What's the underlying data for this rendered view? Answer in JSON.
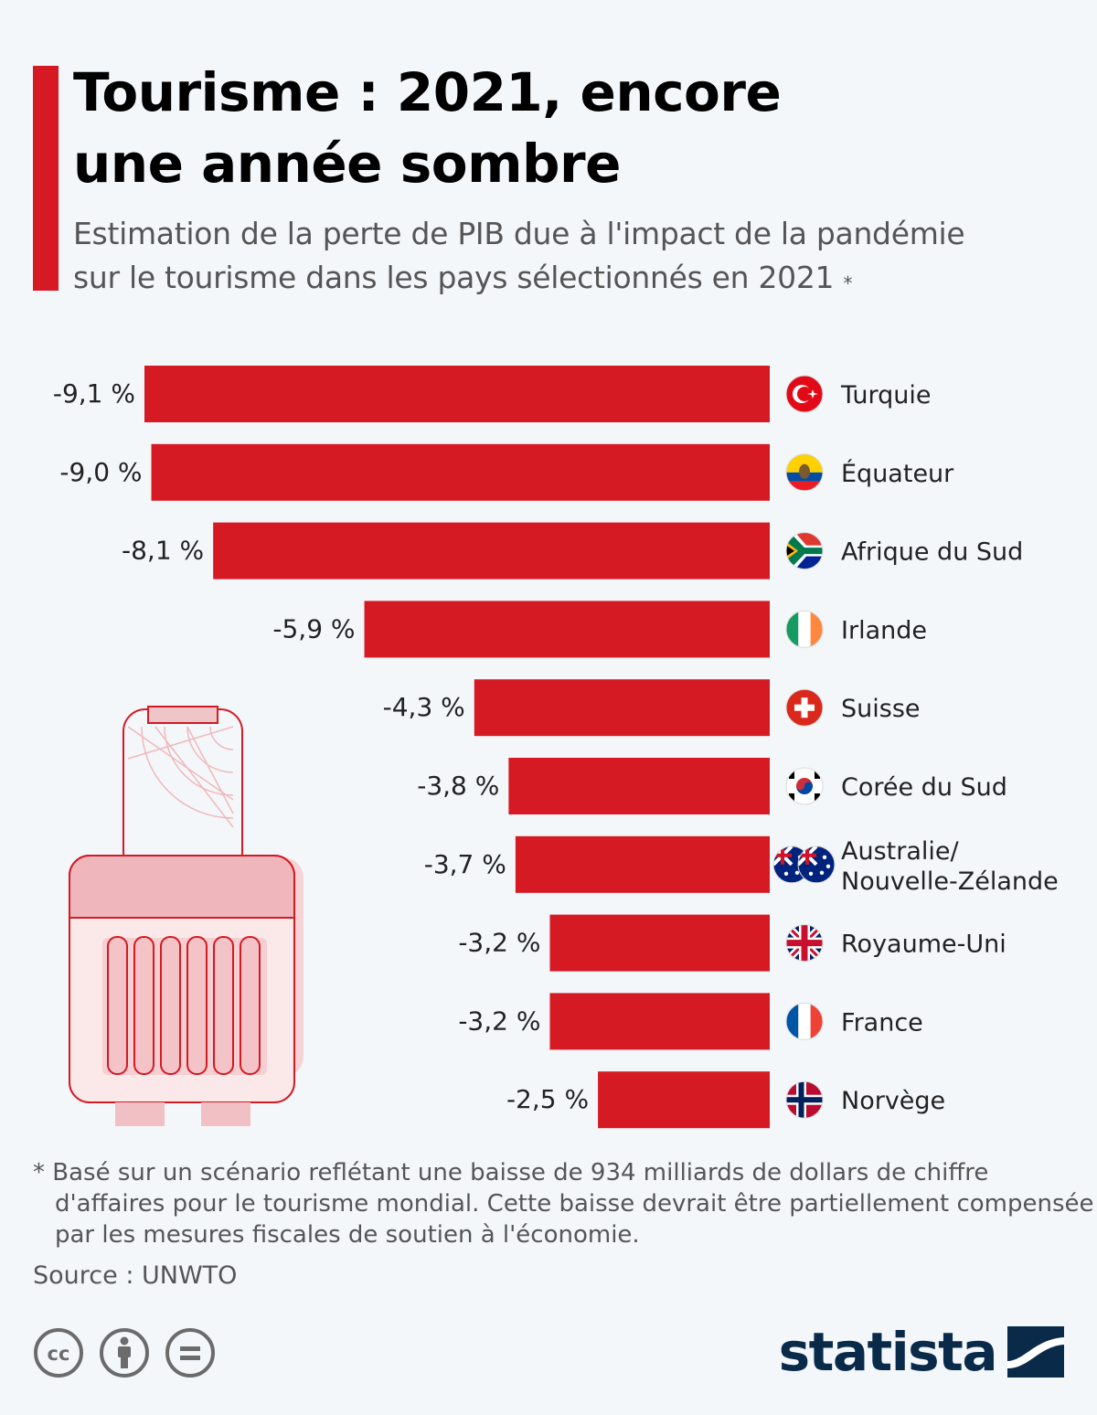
{
  "title_line1": "Tourisme : 2021, encore",
  "title_line2": "une année sombre",
  "subtitle_line1": "Estimation de la perte de PIB due à l'impact de la pandémie",
  "subtitle_line2": "sur le tourisme dans les pays sélectionnés en 2021",
  "subtitle_marker": "*",
  "footnote": "* Basé sur un scénario reflétant une baisse de 934 milliards de dollars de chiffre d'affaires pour le tourisme mondial. Cette baisse devrait être partiellement compensée par les mesures fiscales de soutien à l'économie.",
  "source": "Source : UNWTO",
  "brand": "statista",
  "colors": {
    "accent": "#d51a24",
    "brand": "#0a2a4a",
    "background": "#f4f7fa"
  },
  "icons": [
    "luggage-illustration",
    "cc-icon",
    "by-icon",
    "nd-icon",
    "statista-logo-icon"
  ],
  "chart_data": {
    "type": "bar",
    "orientation": "horizontal",
    "categories": [
      "Turquie",
      "Équateur",
      "Afrique du Sud",
      "Irlande",
      "Suisse",
      "Corée du Sud",
      "Australie/\nNouvelle-Zélande",
      "Royaume-Uni",
      "France",
      "Norvège"
    ],
    "values": [
      -9.1,
      -9.0,
      -8.1,
      -5.9,
      -4.3,
      -3.8,
      -3.7,
      -3.2,
      -3.2,
      -2.5
    ],
    "value_labels": [
      "-9,1 %",
      "-9,0 %",
      "-8,1 %",
      "-5,9 %",
      "-4,3 %",
      "-3,8 %",
      "-3,7 %",
      "-3,2 %",
      "-3,2 %",
      "-2,5 %"
    ],
    "flags": [
      "turkey",
      "ecuador",
      "south-africa",
      "ireland",
      "switzerland",
      "south-korea",
      "australia-new-zealand",
      "united-kingdom",
      "france",
      "norway"
    ],
    "unit": "%",
    "xlim": [
      -9.1,
      0
    ],
    "grid": false,
    "legend": "none"
  }
}
